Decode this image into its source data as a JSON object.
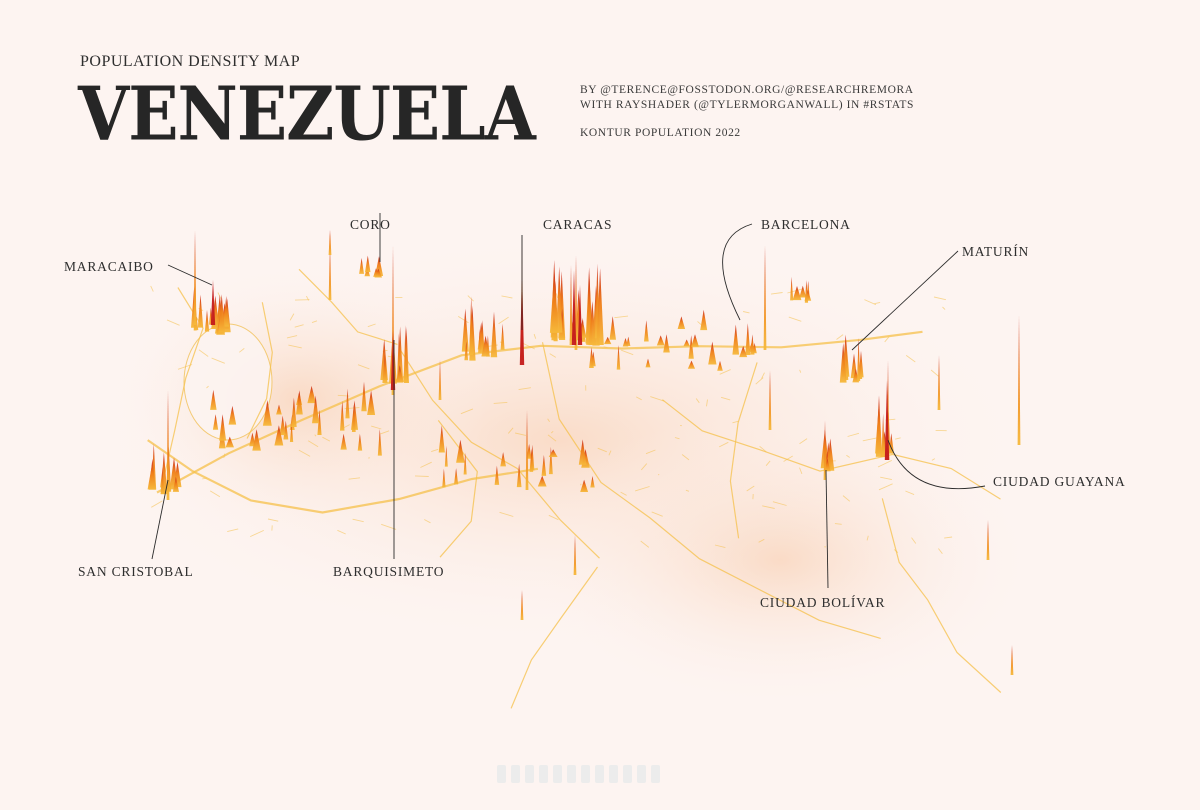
{
  "header": {
    "subtitle": "POPULATION DENSITY MAP",
    "title": "VENEZUELA",
    "credits": [
      "BY @TERENCE@FOSSTODON.ORG/@RESEARCHREMORA",
      "WITH RAYSHADER (@TYLERMORGANWALL) IN #RSTATS",
      "KONTUR POPULATION 2022"
    ]
  },
  "map": {
    "cities": [
      {
        "id": "maracaibo",
        "name": "MARACAIBO"
      },
      {
        "id": "coro",
        "name": "CORO"
      },
      {
        "id": "caracas",
        "name": "CARACAS"
      },
      {
        "id": "barcelona",
        "name": "BARCELONA"
      },
      {
        "id": "maturin",
        "name": "MATURÍN"
      },
      {
        "id": "san-cristobal",
        "name": "SAN CRISTOBAL"
      },
      {
        "id": "barquisimeto",
        "name": "BARQUISIMETO"
      },
      {
        "id": "ciudad-bolivar",
        "name": "CIUDAD BOLÍVAR"
      },
      {
        "id": "ciudad-guayana",
        "name": "CIUDAD GUAYANA"
      }
    ],
    "colors": {
      "background": "#fdf4f1",
      "low_density": "#f5c04a",
      "mid_density": "#f08a1e",
      "high_density": "#c41a1a",
      "leader_line": "#2b2b2b"
    }
  }
}
